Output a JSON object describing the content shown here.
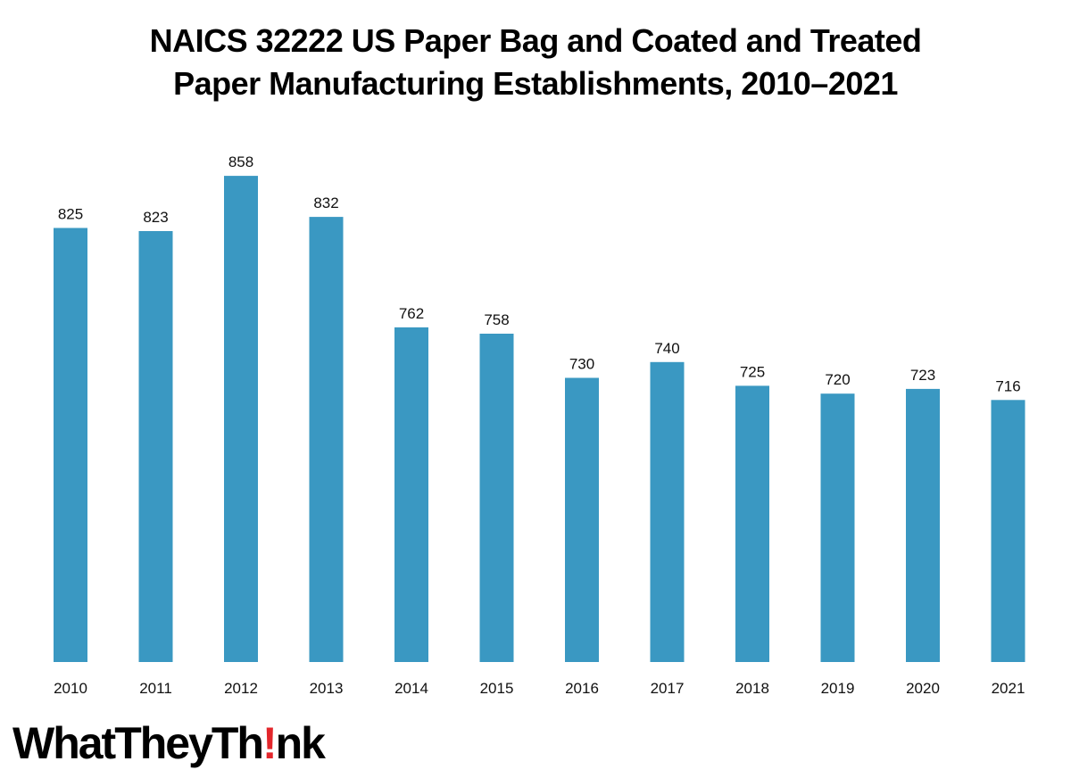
{
  "chart_data": {
    "type": "bar",
    "title": [
      "NAICS 32222 US Paper Bag and Coated and Treated",
      "Paper Manufacturing Establishments, 2010–2021"
    ],
    "categories": [
      "2010",
      "2011",
      "2012",
      "2013",
      "2014",
      "2015",
      "2016",
      "2017",
      "2018",
      "2019",
      "2020",
      "2021"
    ],
    "values": [
      825,
      823,
      858,
      832,
      762,
      758,
      730,
      740,
      725,
      720,
      723,
      716
    ],
    "data_labels": [
      "825",
      "823",
      "858",
      "832",
      "762",
      "758",
      "730",
      "740",
      "725",
      "720",
      "723",
      "716"
    ],
    "bar_color": "#3a98c2",
    "xlabel": "",
    "ylabel": "",
    "ylim": [
      550,
      875
    ],
    "grid": false,
    "legend": "none"
  },
  "branding": {
    "logo_text_1": "WhatTheyTh",
    "logo_text_2": "!",
    "logo_text_3": "nk",
    "accent_color": "#e3262b"
  }
}
